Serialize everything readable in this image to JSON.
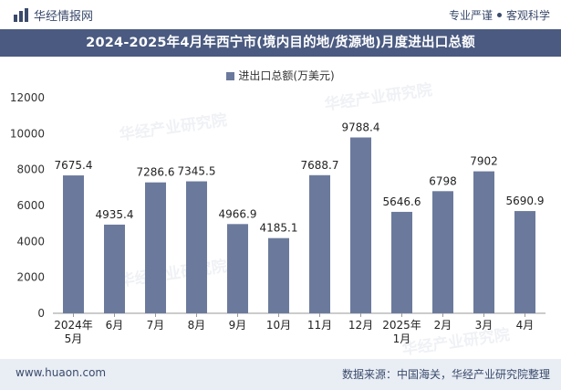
{
  "brand": {
    "name": "华经情报网"
  },
  "header": {
    "slogan_left": "专业严谨",
    "slogan_right": "客观科学"
  },
  "title": "2024-2025年4月年西宁市(境内目的地/货源地)月度进出口总额",
  "footer": {
    "url": "www.huaon.com",
    "source": "数据来源：中国海关，华经产业研究院整理"
  },
  "watermark": {
    "text": "华经产业研究院"
  },
  "colors": {
    "bar": "#6b7a9c",
    "title_bg": "#4a5a80",
    "footer_bg": "#e9eef5"
  },
  "chart_data": {
    "type": "bar",
    "title": "2024-2025年4月年西宁市(境内目的地/货源地)月度进出口总额",
    "series": [
      {
        "name": "进出口总额(万美元)",
        "values": [
          7675.4,
          4935.4,
          7286.6,
          7345.5,
          4966.9,
          4185.1,
          7688.7,
          9788.4,
          5646.6,
          6798,
          7902,
          5690.9
        ],
        "labels": [
          "7675.4",
          "4935.4",
          "7286.6",
          "7345.5",
          "4966.9",
          "4185.1",
          "7688.7",
          "9788.4",
          "5646.6",
          "6798",
          "7902",
          "5690.9"
        ]
      }
    ],
    "categories": [
      [
        "2024年",
        "5月"
      ],
      [
        "6月"
      ],
      [
        "7月"
      ],
      [
        "8月"
      ],
      [
        "9月"
      ],
      [
        "10月"
      ],
      [
        "11月"
      ],
      [
        "12月"
      ],
      [
        "2025年",
        "1月"
      ],
      [
        "2月"
      ],
      [
        "3月"
      ],
      [
        "4月"
      ]
    ],
    "ylim": [
      0,
      12000
    ],
    "yticks": [
      0,
      2000,
      4000,
      6000,
      8000,
      10000,
      12000
    ],
    "xlabel": "",
    "ylabel": "",
    "legend_position": "top-center"
  }
}
